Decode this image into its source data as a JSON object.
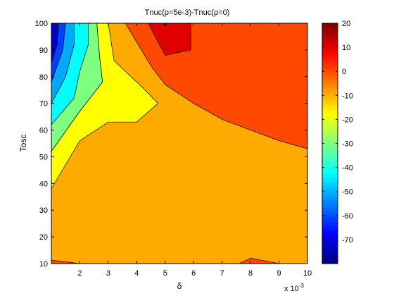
{
  "chart_data": {
    "type": "contour",
    "title": "Tnuc(ρ=5e-3)-Tnuc(ρ=0)",
    "xlabel": "δ",
    "ylabel": "Tosc",
    "x_exponent_label": "x 10",
    "x_exponent_power": "-3",
    "xlim": [
      1,
      10
    ],
    "ylim": [
      10,
      100
    ],
    "xticks": [
      "2",
      "3",
      "4",
      "5",
      "6",
      "7",
      "8",
      "9",
      "10"
    ],
    "yticks": [
      "10",
      "20",
      "30",
      "40",
      "50",
      "60",
      "70",
      "80",
      "90",
      "100"
    ],
    "colorbar": {
      "range": [
        -80,
        20
      ],
      "ticks": [
        "20",
        "10",
        "0",
        "-10",
        "-20",
        "-30",
        "-40",
        "-50",
        "-60",
        "-70"
      ]
    },
    "levels": [
      {
        "from": -10,
        "to": 0,
        "color": "#ffaa00",
        "points": [
          [
            1,
            10
          ],
          [
            10,
            10
          ],
          [
            10,
            100
          ],
          [
            1,
            100
          ]
        ]
      },
      {
        "from": -80,
        "to": -70,
        "color": "#0000c8",
        "points": [
          [
            1,
            100
          ],
          [
            1,
            85
          ],
          [
            1.2,
            92
          ],
          [
            1.25,
            100
          ]
        ]
      },
      {
        "from": -70,
        "to": -60,
        "color": "#0040ff",
        "points": [
          [
            1,
            85
          ],
          [
            1,
            78
          ],
          [
            1.4,
            90
          ],
          [
            1.5,
            100
          ],
          [
            1.25,
            100
          ],
          [
            1.2,
            92
          ]
        ]
      },
      {
        "from": -60,
        "to": -50,
        "color": "#00a8ff",
        "points": [
          [
            1,
            78
          ],
          [
            1,
            70
          ],
          [
            1.5,
            80
          ],
          [
            1.8,
            92
          ],
          [
            1.8,
            100
          ],
          [
            1.5,
            100
          ],
          [
            1.4,
            90
          ]
        ]
      },
      {
        "from": -50,
        "to": -40,
        "color": "#00ffff",
        "points": [
          [
            1,
            70
          ],
          [
            1,
            62
          ],
          [
            1.8,
            72
          ],
          [
            2,
            82
          ],
          [
            2.3,
            92
          ],
          [
            2.3,
            100
          ],
          [
            1.8,
            100
          ],
          [
            1.8,
            92
          ],
          [
            1.5,
            80
          ]
        ]
      },
      {
        "from": -40,
        "to": -30,
        "color": "#7fff7f",
        "points": [
          [
            1,
            62
          ],
          [
            1,
            52
          ],
          [
            2,
            67
          ],
          [
            2.8,
            78
          ],
          [
            2.7,
            87
          ],
          [
            2.6,
            100
          ],
          [
            2.3,
            100
          ],
          [
            2.3,
            92
          ],
          [
            2,
            82
          ],
          [
            1.8,
            72
          ]
        ]
      },
      {
        "from": -30,
        "to": -20,
        "color": "#ffff00",
        "points": [
          [
            1,
            52
          ],
          [
            1,
            38
          ],
          [
            2,
            56
          ],
          [
            3,
            63
          ],
          [
            4,
            63
          ],
          [
            4.75,
            70
          ],
          [
            4.2,
            76
          ],
          [
            3.2,
            86
          ],
          [
            3,
            100
          ],
          [
            2.6,
            100
          ],
          [
            2.7,
            87
          ],
          [
            2.8,
            78
          ],
          [
            2,
            67
          ]
        ]
      },
      {
        "from": -20,
        "to": -10,
        "color": "#ffff80",
        "points": [
          [
            1,
            38
          ],
          [
            1,
            36
          ],
          [
            1,
            38
          ]
        ]
      },
      {
        "from": 0,
        "to": 10,
        "color": "#ff4800",
        "points": [
          [
            3.6,
            100
          ],
          [
            4.5,
            84
          ],
          [
            5,
            77
          ],
          [
            6,
            70
          ],
          [
            7,
            64
          ],
          [
            8,
            60
          ],
          [
            9,
            56
          ],
          [
            10,
            53
          ],
          [
            10,
            100
          ]
        ]
      },
      {
        "from": 10,
        "to": 20,
        "color": "#e00000",
        "points": [
          [
            4.4,
            100
          ],
          [
            5,
            88
          ],
          [
            5.9,
            90
          ],
          [
            5.9,
            100
          ]
        ]
      },
      {
        "from": 10,
        "to": 20,
        "color": "#e00000",
        "points": [
          [
            4.9,
            100
          ],
          [
            5,
            98.8
          ],
          [
            5.1,
            100
          ]
        ]
      },
      {
        "from": 0,
        "to": 10,
        "color": "#ff4800",
        "points": [
          [
            1,
            11.3
          ],
          [
            2,
            10
          ],
          [
            1,
            10
          ]
        ]
      },
      {
        "from": 0,
        "to": 10,
        "color": "#ff4800",
        "points": [
          [
            7.6,
            10
          ],
          [
            8,
            12
          ],
          [
            9,
            10
          ]
        ]
      }
    ]
  }
}
